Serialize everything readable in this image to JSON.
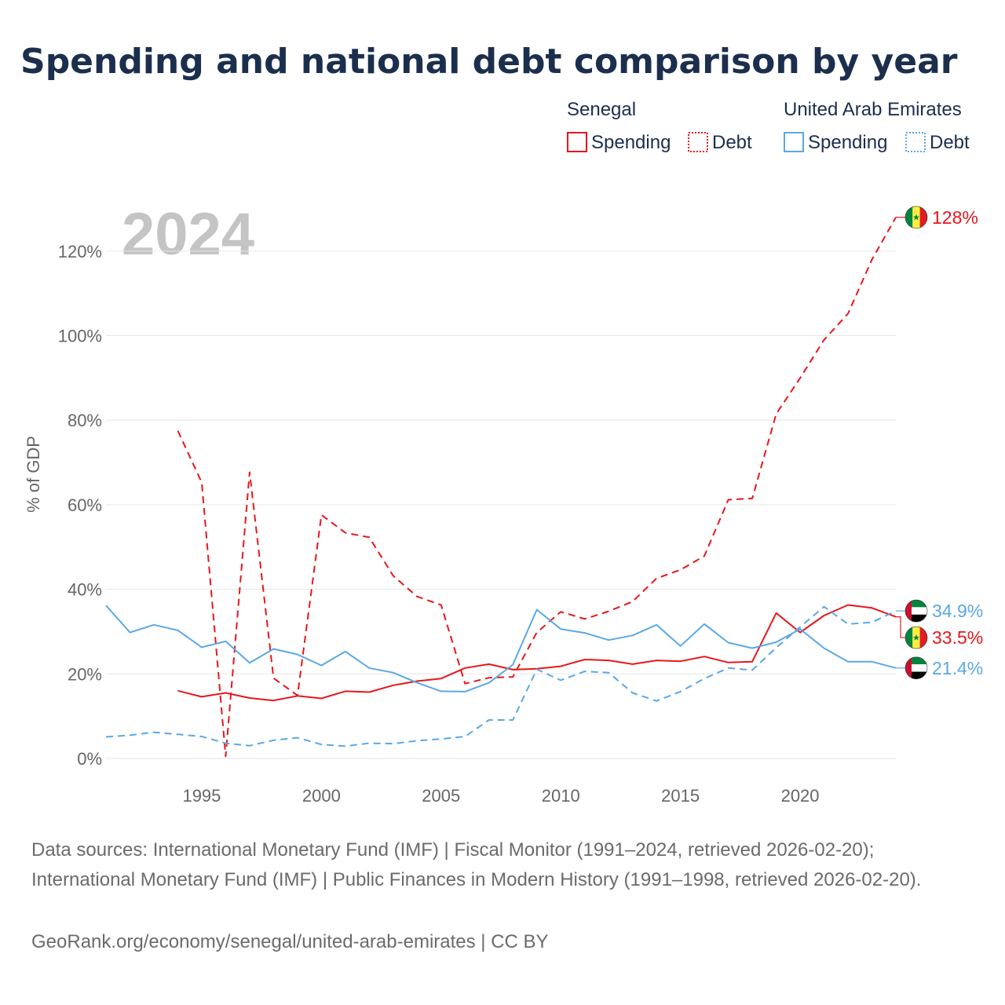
{
  "title": "Spending and national debt comparison by year",
  "year_label": "2024",
  "legend": {
    "groups": [
      {
        "country": "Senegal",
        "spending_label": "Spending",
        "debt_label": "Debt",
        "color": "#e8161b"
      },
      {
        "country": "United Arab Emirates",
        "spending_label": "Spending",
        "debt_label": "Debt",
        "color": "#5aa8e6"
      }
    ]
  },
  "colors": {
    "senegal": "#e8161b",
    "uae": "#5aa8e6",
    "title": "#1b2f4d",
    "axis": "#666666"
  },
  "chart_data": {
    "type": "line",
    "title": "Spending and national debt comparison by year",
    "ylabel": "% of GDP",
    "xlabel": "",
    "xlim": [
      1991,
      2024
    ],
    "ylim": [
      0,
      130
    ],
    "y_ticks": [
      0,
      20,
      40,
      60,
      80,
      100,
      120
    ],
    "y_tick_labels": [
      "0%",
      "20%",
      "40%",
      "60%",
      "80%",
      "100%",
      "120%"
    ],
    "x_ticks": [
      1995,
      2000,
      2005,
      2010,
      2015,
      2020
    ],
    "x_tick_labels": [
      "1995",
      "2000",
      "2005",
      "2010",
      "2015",
      "2020"
    ],
    "grid": true,
    "series": [
      {
        "name": "Senegal Spending",
        "country": "senegal",
        "style": "solid",
        "x": [
          1994,
          1995,
          1996,
          1997,
          1998,
          1999,
          2000,
          2001,
          2002,
          2003,
          2004,
          2005,
          2006,
          2007,
          2008,
          2009,
          2010,
          2011,
          2012,
          2013,
          2014,
          2015,
          2016,
          2017,
          2018,
          2019,
          2020,
          2021,
          2022,
          2023,
          2024
        ],
        "values": [
          16.0,
          14.6,
          15.5,
          14.3,
          13.7,
          14.8,
          14.2,
          15.9,
          15.7,
          17.3,
          18.3,
          18.9,
          21.4,
          22.3,
          21.0,
          21.2,
          21.8,
          23.4,
          23.2,
          22.3,
          23.2,
          23.0,
          24.1,
          22.7,
          22.9,
          34.4,
          29.8,
          33.8,
          36.3,
          35.6,
          33.5
        ]
      },
      {
        "name": "Senegal Debt",
        "country": "senegal",
        "style": "dashed",
        "x": [
          1994,
          1995,
          1996,
          1997,
          1998,
          1999,
          2000,
          2001,
          2002,
          2003,
          2004,
          2005,
          2006,
          2007,
          2008,
          2009,
          2010,
          2011,
          2012,
          2013,
          2014,
          2015,
          2016,
          2017,
          2018,
          2019,
          2020,
          2021,
          2022,
          2023,
          2024
        ],
        "values": [
          77.5,
          65.3,
          0.5,
          67.7,
          19.0,
          14.9,
          57.6,
          53.4,
          52.3,
          43.2,
          38.3,
          36.3,
          17.7,
          19.1,
          19.3,
          29.8,
          34.7,
          33.0,
          34.8,
          37.1,
          42.6,
          44.6,
          47.9,
          61.2,
          61.5,
          81.5,
          90.0,
          99.0,
          105.2,
          118.0,
          128.0
        ]
      },
      {
        "name": "United Arab Emirates Spending",
        "country": "uae",
        "style": "solid",
        "x": [
          1991,
          1992,
          1993,
          1994,
          1995,
          1996,
          1997,
          1998,
          1999,
          2000,
          2001,
          2002,
          2003,
          2004,
          2005,
          2006,
          2007,
          2008,
          2009,
          2010,
          2011,
          2012,
          2013,
          2014,
          2015,
          2016,
          2017,
          2018,
          2019,
          2020,
          2021,
          2022,
          2023,
          2024
        ],
        "values": [
          36.2,
          29.8,
          31.6,
          30.3,
          26.3,
          27.7,
          22.6,
          25.9,
          24.6,
          22.0,
          25.3,
          21.4,
          20.3,
          17.9,
          15.9,
          15.8,
          17.9,
          22.2,
          35.2,
          30.6,
          29.7,
          28.0,
          29.1,
          31.6,
          26.6,
          31.8,
          27.4,
          26.1,
          27.5,
          30.6,
          26.1,
          22.9,
          22.9,
          21.4
        ]
      },
      {
        "name": "United Arab Emirates Debt",
        "country": "uae",
        "style": "dotted",
        "x": [
          1991,
          1992,
          1993,
          1994,
          1995,
          1996,
          1997,
          1998,
          1999,
          2000,
          2001,
          2002,
          2003,
          2004,
          2005,
          2006,
          2007,
          2008,
          2009,
          2010,
          2011,
          2012,
          2013,
          2014,
          2015,
          2016,
          2017,
          2018,
          2019,
          2020,
          2021,
          2022,
          2023,
          2024
        ],
        "values": [
          5.1,
          5.5,
          6.2,
          5.7,
          5.2,
          3.6,
          3.0,
          4.3,
          4.9,
          3.3,
          2.9,
          3.6,
          3.5,
          4.2,
          4.6,
          5.2,
          9.1,
          9.1,
          21.1,
          18.5,
          20.6,
          20.3,
          15.5,
          13.6,
          15.8,
          18.9,
          21.4,
          20.9,
          26.2,
          31.1,
          35.9,
          31.8,
          32.2,
          34.9
        ]
      }
    ],
    "end_labels": [
      {
        "series": "Senegal Debt",
        "label": "128%",
        "flag": "senegal",
        "country": "senegal"
      },
      {
        "series": "United Arab Emirates Debt",
        "label": "34.9%",
        "flag": "uae",
        "country": "uae"
      },
      {
        "series": "Senegal Spending",
        "label": "33.5%",
        "flag": "senegal",
        "country": "senegal"
      },
      {
        "series": "United Arab Emirates Spending",
        "label": "21.4%",
        "flag": "uae",
        "country": "uae"
      }
    ]
  },
  "footer": {
    "sources": "Data sources: International Monetary Fund (IMF) | Fiscal Monitor (1991–2024, retrieved 2026-02-20); International Monetary Fund (IMF) | Public Finances in Modern History (1991–1998, retrieved 2026-02-20).",
    "attribution": "GeoRank.org/economy/senegal/united-arab-emirates | CC BY"
  }
}
